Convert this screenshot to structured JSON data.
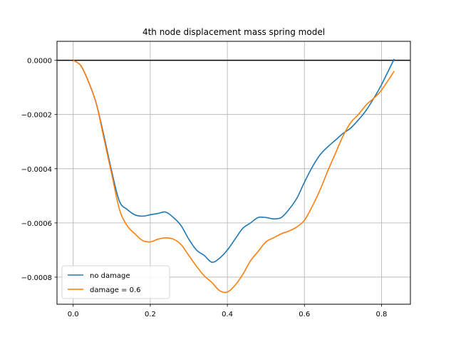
{
  "chart_data": {
    "type": "line",
    "title": "4th node displacement mass spring model",
    "xlabel": "",
    "ylabel": "",
    "xlim": [
      -0.042,
      0.875
    ],
    "ylim": [
      -0.0009,
      7e-05
    ],
    "xticks": [
      0.0,
      0.2,
      0.4,
      0.6,
      0.8
    ],
    "xtick_labels": [
      "0.0",
      "0.2",
      "0.4",
      "0.6",
      "0.8"
    ],
    "yticks": [
      0.0,
      -0.0002,
      -0.0004,
      -0.0006,
      -0.0008
    ],
    "ytick_labels": [
      "0.0000",
      "−0.0002",
      "−0.0004",
      "−0.0006",
      "−0.0008"
    ],
    "grid": true,
    "legend_position": "lower-left",
    "reference_line": {
      "y": 0.0,
      "color": "#000000"
    },
    "series": [
      {
        "name": "no damage",
        "color": "#1f77b4",
        "x": [
          0.0,
          0.02,
          0.04,
          0.06,
          0.08,
          0.1,
          0.12,
          0.14,
          0.16,
          0.18,
          0.2,
          0.22,
          0.24,
          0.26,
          0.28,
          0.3,
          0.32,
          0.34,
          0.36,
          0.38,
          0.4,
          0.42,
          0.44,
          0.46,
          0.48,
          0.5,
          0.52,
          0.54,
          0.56,
          0.58,
          0.6,
          0.62,
          0.64,
          0.66,
          0.68,
          0.7,
          0.72,
          0.74,
          0.76,
          0.78,
          0.8,
          0.833
        ],
        "values": [
          0.0,
          -2e-05,
          -8e-05,
          -0.00016,
          -0.00028,
          -0.00041,
          -0.00052,
          -0.00055,
          -0.00057,
          -0.000575,
          -0.00057,
          -0.000565,
          -0.00056,
          -0.00058,
          -0.00061,
          -0.00066,
          -0.0007,
          -0.00072,
          -0.000745,
          -0.00073,
          -0.0007,
          -0.00066,
          -0.00062,
          -0.0006,
          -0.00058,
          -0.00058,
          -0.000585,
          -0.00058,
          -0.00055,
          -0.00051,
          -0.00045,
          -0.000395,
          -0.00035,
          -0.00032,
          -0.000295,
          -0.00027,
          -0.00025,
          -0.00022,
          -0.000185,
          -0.00014,
          -9e-05,
          5e-06
        ]
      },
      {
        "name": "damage = 0.6",
        "color": "#ff7f0e",
        "x": [
          0.0,
          0.02,
          0.04,
          0.06,
          0.08,
          0.1,
          0.12,
          0.14,
          0.16,
          0.18,
          0.2,
          0.22,
          0.24,
          0.26,
          0.28,
          0.3,
          0.32,
          0.34,
          0.36,
          0.38,
          0.4,
          0.42,
          0.44,
          0.46,
          0.48,
          0.5,
          0.52,
          0.54,
          0.56,
          0.58,
          0.6,
          0.62,
          0.64,
          0.66,
          0.68,
          0.7,
          0.72,
          0.74,
          0.76,
          0.78,
          0.8,
          0.833
        ],
        "values": [
          0.0,
          -2e-05,
          -8e-05,
          -0.00016,
          -0.00029,
          -0.00042,
          -0.00055,
          -0.00061,
          -0.00064,
          -0.000665,
          -0.00067,
          -0.00066,
          -0.000655,
          -0.00066,
          -0.00068,
          -0.00072,
          -0.00076,
          -0.000795,
          -0.00082,
          -0.00085,
          -0.000855,
          -0.00083,
          -0.00079,
          -0.00074,
          -0.000705,
          -0.00067,
          -0.000655,
          -0.00064,
          -0.00063,
          -0.000615,
          -0.00059,
          -0.00054,
          -0.00048,
          -0.00041,
          -0.000345,
          -0.00028,
          -0.00023,
          -0.0002,
          -0.000165,
          -0.00014,
          -0.00011,
          -4e-05
        ]
      }
    ]
  }
}
